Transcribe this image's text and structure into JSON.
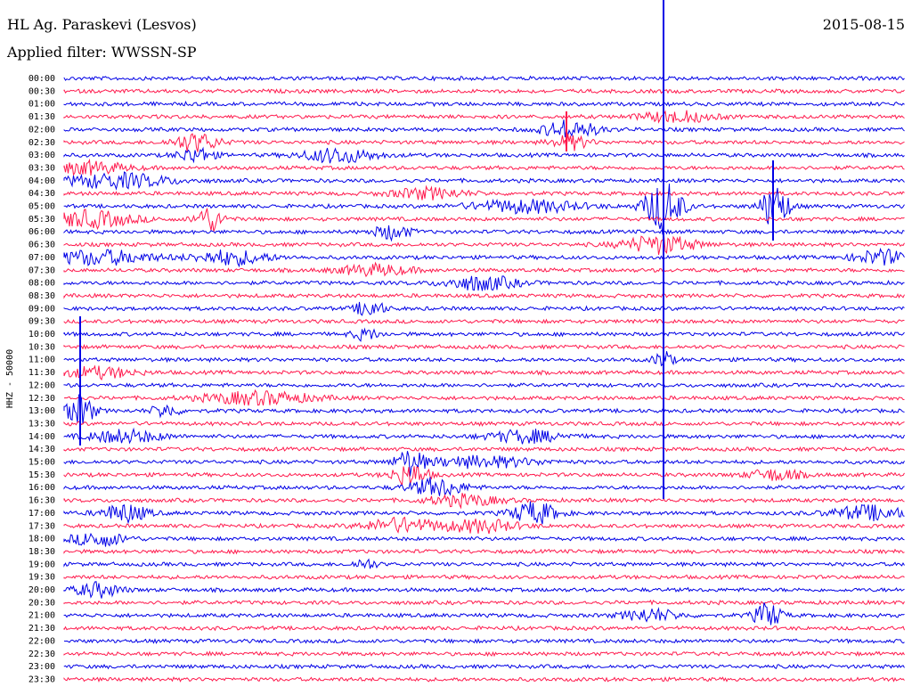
{
  "header": {
    "station": "HL Ag. Paraskevi (Lesvos)",
    "date": "2015-08-15",
    "filter": "Applied filter: WWSSN-SP",
    "channel": "HHZ - 50000"
  },
  "chart_data": {
    "type": "line",
    "title": "HL Ag. Paraskevi (Lesvos)",
    "subtitle": "Applied filter: WWSSN-SP",
    "ylabel": "HHZ - 50000",
    "colors": [
      "#0000e6",
      "#ff1a4d"
    ],
    "tick_labels": [
      "00:00",
      "00:30",
      "01:00",
      "01:30",
      "02:00",
      "02:30",
      "03:00",
      "03:30",
      "04:00",
      "04:30",
      "05:00",
      "05:30",
      "06:00",
      "06:30",
      "07:00",
      "07:30",
      "08:00",
      "08:30",
      "09:00",
      "09:30",
      "10:00",
      "10:30",
      "11:00",
      "11:30",
      "12:00",
      "12:30",
      "13:00",
      "13:30",
      "14:00",
      "14:30",
      "15:00",
      "15:30",
      "16:00",
      "16:30",
      "17:00",
      "17:30",
      "18:00",
      "18:30",
      "19:00",
      "19:30",
      "20:00",
      "20:30",
      "21:00",
      "21:30",
      "22:00",
      "22:30",
      "23:00",
      "23:30"
    ]
  }
}
